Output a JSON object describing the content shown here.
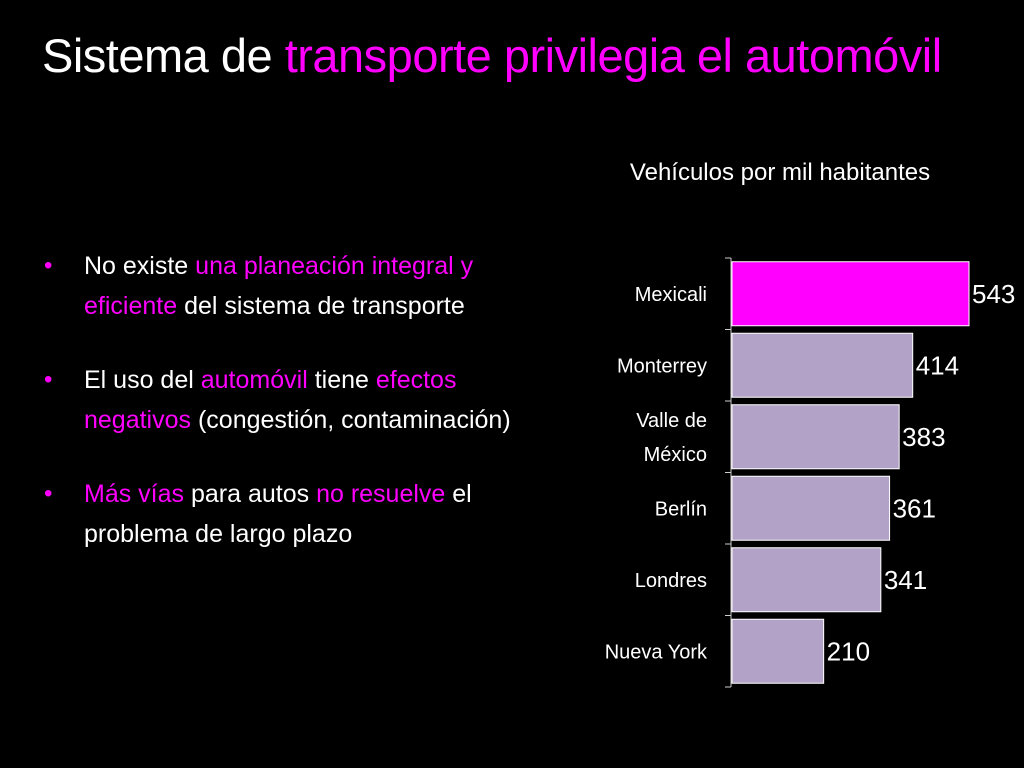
{
  "slide": {
    "title_part1": "Sistema de",
    "title_part2": "transporte privilegia el automóvil"
  },
  "bullets": [
    {
      "s1": "No existe ",
      "s2": "una planeación integral y eficiente",
      "s3": " del sistema de transporte"
    },
    {
      "s1": "El uso del ",
      "s2": "automóvil",
      "s3": " tiene ",
      "s4": "efectos negativos",
      "s5": " (congestión, contaminación)"
    },
    {
      "s1": "Más vías",
      "s2": " para autos ",
      "s3": "no resuelve",
      "s4": " el problema de largo plazo"
    }
  ],
  "colors": {
    "accent": "#ff00ff",
    "bar_default": "#b3a2c7",
    "bar_highlight": "#ff00ff",
    "background": "#000000"
  },
  "chart_data": {
    "type": "bar",
    "orientation": "horizontal",
    "title": "Vehículos por mil habitantes",
    "categories": [
      "Mexicali",
      "Monterrey",
      "Valle de México",
      "Berlín",
      "Londres",
      "Nueva York"
    ],
    "category_lines": [
      [
        "Mexicali"
      ],
      [
        "Monterrey"
      ],
      [
        "Valle de",
        "México"
      ],
      [
        "Berlín"
      ],
      [
        "Londres"
      ],
      [
        "Nueva York"
      ]
    ],
    "values": [
      543,
      414,
      383,
      361,
      341,
      210
    ],
    "highlight_index": 0,
    "xlim": [
      0,
      543
    ],
    "grid": false,
    "legend": "none",
    "data_labels": true
  }
}
